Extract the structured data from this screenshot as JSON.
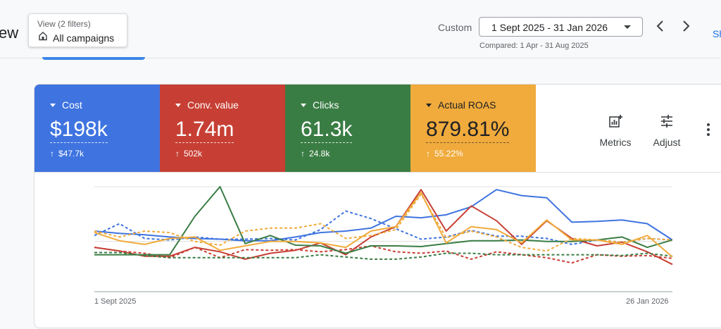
{
  "header": {
    "title_fragment": "ew",
    "view": {
      "label": "View (2 filters)",
      "value": "All campaigns"
    },
    "date_range": {
      "mode": "Custom",
      "value": "1 Sept 2025 - 31 Jan 2026",
      "compared": "Compared: 1 Apr - 31 Aug 2025"
    },
    "share_fragment": "Sh"
  },
  "metrics": [
    {
      "name": "Cost",
      "value": "$198k",
      "change": "$47.7k",
      "color": "#3f74e0"
    },
    {
      "name": "Conv. value",
      "value": "1.74m",
      "change": "502k",
      "color": "#c73f34"
    },
    {
      "name": "Clicks",
      "value": "61.3k",
      "change": "24.8k",
      "color": "#3a7d44"
    },
    {
      "name": "Actual ROAS",
      "value": "879.81%",
      "change": "55.22%",
      "color": "#f0ab3c"
    }
  ],
  "toolbar": {
    "metrics_label": "Metrics",
    "adjust_label": "Adjust"
  },
  "chart_data": {
    "type": "line",
    "x_start_label": "1 Sept 2025",
    "x_end_label": "26 Jan 2026",
    "y_scale": "normalized per metric (no axis values shown)",
    "ylim": [
      0,
      100
    ],
    "grid": true,
    "series": [
      {
        "name": "Cost",
        "period": "current",
        "style": "solid",
        "color": "#3f74e0",
        "values": [
          40,
          37,
          35,
          32,
          30,
          29,
          27,
          27,
          32,
          38,
          40,
          44,
          60,
          58,
          62,
          73,
          96,
          88,
          85,
          52,
          53,
          55,
          50,
          28
        ]
      },
      {
        "name": "Cost",
        "period": "previous",
        "style": "dashed",
        "color": "#3f74e0",
        "values": [
          34,
          50,
          30,
          28,
          32,
          29,
          29,
          30,
          28,
          42,
          67,
          57,
          43,
          29,
          32,
          41,
          33,
          33,
          30,
          22,
          28,
          25,
          30,
          28
        ]
      },
      {
        "name": "Conv. value",
        "period": "current",
        "style": "solid",
        "color": "#c73f34",
        "values": [
          18,
          13,
          6,
          6,
          18,
          12,
          2,
          10,
          14,
          24,
          8,
          32,
          46,
          96,
          40,
          74,
          54,
          22,
          54,
          30,
          20,
          25,
          12,
          -5
        ]
      },
      {
        "name": "Conv. value",
        "period": "previous",
        "style": "dashed",
        "color": "#c73f34",
        "values": [
          18,
          13,
          10,
          4,
          18,
          4,
          15,
          14,
          15,
          12,
          15,
          20,
          12,
          10,
          13,
          2,
          12,
          8,
          4,
          -3,
          8,
          6,
          7,
          3
        ]
      },
      {
        "name": "Clicks",
        "period": "current",
        "style": "solid",
        "color": "#3a7d44",
        "values": [
          8,
          8,
          8,
          8,
          60,
          100,
          23,
          34,
          21,
          20,
          10,
          20,
          20,
          19,
          23,
          27,
          27,
          28,
          26,
          26,
          28,
          32,
          18,
          28
        ]
      },
      {
        "name": "Clicks",
        "period": "previous",
        "style": "dashed",
        "color": "#3a7d44",
        "values": [
          11,
          11,
          7,
          4,
          4,
          4,
          4,
          4,
          4,
          8,
          5,
          2,
          2,
          5,
          10,
          10,
          8,
          8,
          8,
          8,
          8,
          7,
          10,
          6
        ]
      },
      {
        "name": "Actual ROAS",
        "period": "current",
        "style": "solid",
        "color": "#f0ab3c",
        "values": [
          38,
          27,
          22,
          30,
          32,
          14,
          20,
          26,
          26,
          24,
          18,
          40,
          46,
          92,
          24,
          46,
          42,
          24,
          55,
          28,
          28,
          22,
          34,
          5
        ]
      },
      {
        "name": "Actual ROAS",
        "period": "previous",
        "style": "dashed",
        "color": "#f0ab3c",
        "values": [
          40,
          32,
          40,
          38,
          26,
          21,
          40,
          44,
          44,
          50,
          30,
          34,
          42,
          90,
          31,
          40,
          32,
          18,
          13,
          30,
          28,
          25,
          30,
          28
        ]
      }
    ]
  }
}
